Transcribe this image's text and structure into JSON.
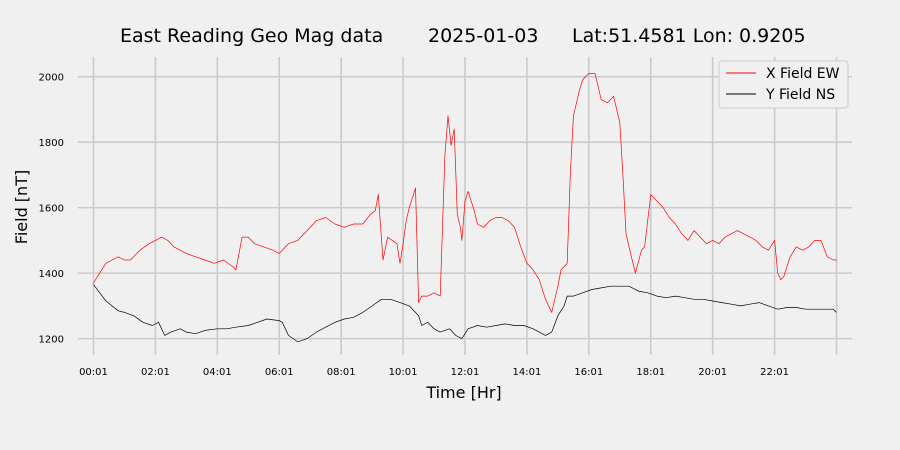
{
  "chart_data": {
    "type": "line",
    "title": {
      "main": "East Reading Geo Mag data",
      "date": "2025-01-03",
      "location": "Lat:51.4581  Lon: 0.9205"
    },
    "xlabel": "Time  [Hr]",
    "ylabel": "Field  [nT]",
    "x_unit": "hours",
    "xlim": [
      -0.5,
      24.5
    ],
    "ylim": [
      1150,
      2060
    ],
    "xticks": [
      0,
      2,
      4,
      6,
      8,
      10,
      12,
      14,
      16,
      18,
      20,
      22,
      24
    ],
    "xtick_labels": [
      "00:01",
      "02:01",
      "04:01",
      "06:01",
      "08:01",
      "10:01",
      "12:01",
      "14:01",
      "16:01",
      "18:01",
      "20:01",
      "22:01",
      ""
    ],
    "yticks": [
      1200,
      1400,
      1600,
      1800,
      2000
    ],
    "ytick_labels": [
      "1200",
      "1400",
      "1600",
      "1800",
      "2000"
    ],
    "grid": true,
    "legend_position": "top-right",
    "series": [
      {
        "name": "X Field EW",
        "color": "#ff0000",
        "x": [
          0,
          0.2,
          0.4,
          0.6,
          0.8,
          1.0,
          1.2,
          1.5,
          1.8,
          2.0,
          2.2,
          2.4,
          2.6,
          2.8,
          3.0,
          3.3,
          3.6,
          3.9,
          4.2,
          4.5,
          4.6,
          4.8,
          5.0,
          5.2,
          5.5,
          5.8,
          6.0,
          6.3,
          6.6,
          6.9,
          7.2,
          7.5,
          7.8,
          8.1,
          8.4,
          8.7,
          8.95,
          9.1,
          9.2,
          9.35,
          9.5,
          9.8,
          9.9,
          10.0,
          10.1,
          10.2,
          10.3,
          10.4,
          10.5,
          10.6,
          10.8,
          11.0,
          11.2,
          11.35,
          11.45,
          11.55,
          11.65,
          11.75,
          11.85,
          11.9,
          12.0,
          12.1,
          12.2,
          12.3,
          12.4,
          12.6,
          12.8,
          13.0,
          13.2,
          13.4,
          13.6,
          13.8,
          14.0,
          14.2,
          14.4,
          14.6,
          14.8,
          15.0,
          15.1,
          15.3,
          15.4,
          15.5,
          15.6,
          15.7,
          15.8,
          16.0,
          16.2,
          16.4,
          16.6,
          16.8,
          17.0,
          17.1,
          17.2,
          17.35,
          17.5,
          17.7,
          17.8,
          17.9,
          18.0,
          18.2,
          18.4,
          18.6,
          18.8,
          19.0,
          19.2,
          19.4,
          19.6,
          19.8,
          20.0,
          20.2,
          20.4,
          20.6,
          20.8,
          21.0,
          21.2,
          21.4,
          21.6,
          21.8,
          22.0,
          22.1,
          22.2,
          22.3,
          22.5,
          22.7,
          22.9,
          23.1,
          23.3,
          23.5,
          23.7,
          23.9,
          24.0
        ],
        "values": [
          1370,
          1400,
          1430,
          1440,
          1450,
          1440,
          1440,
          1470,
          1490,
          1500,
          1510,
          1500,
          1480,
          1470,
          1460,
          1450,
          1440,
          1430,
          1440,
          1420,
          1410,
          1510,
          1510,
          1490,
          1480,
          1470,
          1460,
          1490,
          1500,
          1530,
          1560,
          1570,
          1550,
          1540,
          1550,
          1550,
          1580,
          1590,
          1640,
          1440,
          1510,
          1490,
          1430,
          1490,
          1560,
          1600,
          1630,
          1660,
          1310,
          1330,
          1330,
          1340,
          1330,
          1760,
          1880,
          1790,
          1840,
          1580,
          1540,
          1500,
          1620,
          1650,
          1620,
          1590,
          1550,
          1540,
          1560,
          1570,
          1570,
          1560,
          1540,
          1480,
          1430,
          1410,
          1380,
          1320,
          1280,
          1360,
          1410,
          1430,
          1700,
          1880,
          1920,
          1960,
          1990,
          2010,
          2010,
          1930,
          1920,
          1940,
          1860,
          1700,
          1520,
          1460,
          1400,
          1470,
          1480,
          1560,
          1640,
          1620,
          1600,
          1570,
          1550,
          1520,
          1500,
          1530,
          1510,
          1490,
          1500,
          1490,
          1510,
          1520,
          1530,
          1520,
          1510,
          1500,
          1480,
          1470,
          1500,
          1400,
          1380,
          1390,
          1450,
          1480,
          1470,
          1480,
          1500,
          1500,
          1450,
          1440,
          1440
        ]
      },
      {
        "name": "Y Field NS",
        "color": "#000000",
        "x": [
          0,
          0.2,
          0.4,
          0.6,
          0.8,
          1.0,
          1.3,
          1.6,
          1.9,
          2.1,
          2.3,
          2.5,
          2.8,
          3.0,
          3.3,
          3.6,
          4.0,
          4.3,
          4.6,
          5.0,
          5.3,
          5.6,
          6.0,
          6.1,
          6.3,
          6.6,
          6.9,
          7.2,
          7.5,
          7.8,
          8.1,
          8.4,
          8.7,
          9.0,
          9.3,
          9.6,
          9.9,
          10.2,
          10.5,
          10.6,
          10.8,
          11.0,
          11.2,
          11.5,
          11.7,
          11.9,
          12.1,
          12.4,
          12.7,
          13.0,
          13.3,
          13.6,
          13.9,
          14.2,
          14.4,
          14.6,
          14.8,
          15.0,
          15.2,
          15.3,
          15.5,
          15.8,
          16.1,
          16.4,
          16.7,
          17.0,
          17.3,
          17.6,
          17.9,
          18.2,
          18.5,
          18.8,
          19.1,
          19.4,
          19.7,
          20.0,
          20.3,
          20.6,
          20.9,
          21.2,
          21.5,
          21.8,
          22.1,
          22.4,
          22.7,
          23.0,
          23.3,
          23.6,
          23.9,
          24.0
        ],
        "values": [
          1365,
          1340,
          1315,
          1300,
          1285,
          1280,
          1270,
          1250,
          1240,
          1250,
          1210,
          1220,
          1230,
          1220,
          1215,
          1225,
          1230,
          1230,
          1235,
          1240,
          1250,
          1260,
          1255,
          1250,
          1210,
          1190,
          1200,
          1220,
          1235,
          1250,
          1260,
          1265,
          1280,
          1300,
          1320,
          1320,
          1310,
          1300,
          1270,
          1240,
          1250,
          1230,
          1220,
          1230,
          1210,
          1200,
          1230,
          1240,
          1235,
          1240,
          1245,
          1240,
          1240,
          1230,
          1220,
          1210,
          1220,
          1270,
          1300,
          1330,
          1330,
          1340,
          1350,
          1355,
          1360,
          1360,
          1360,
          1345,
          1340,
          1330,
          1325,
          1330,
          1325,
          1320,
          1320,
          1315,
          1310,
          1305,
          1300,
          1305,
          1310,
          1300,
          1290,
          1295,
          1295,
          1290,
          1290,
          1290,
          1290,
          1280
        ]
      }
    ]
  }
}
